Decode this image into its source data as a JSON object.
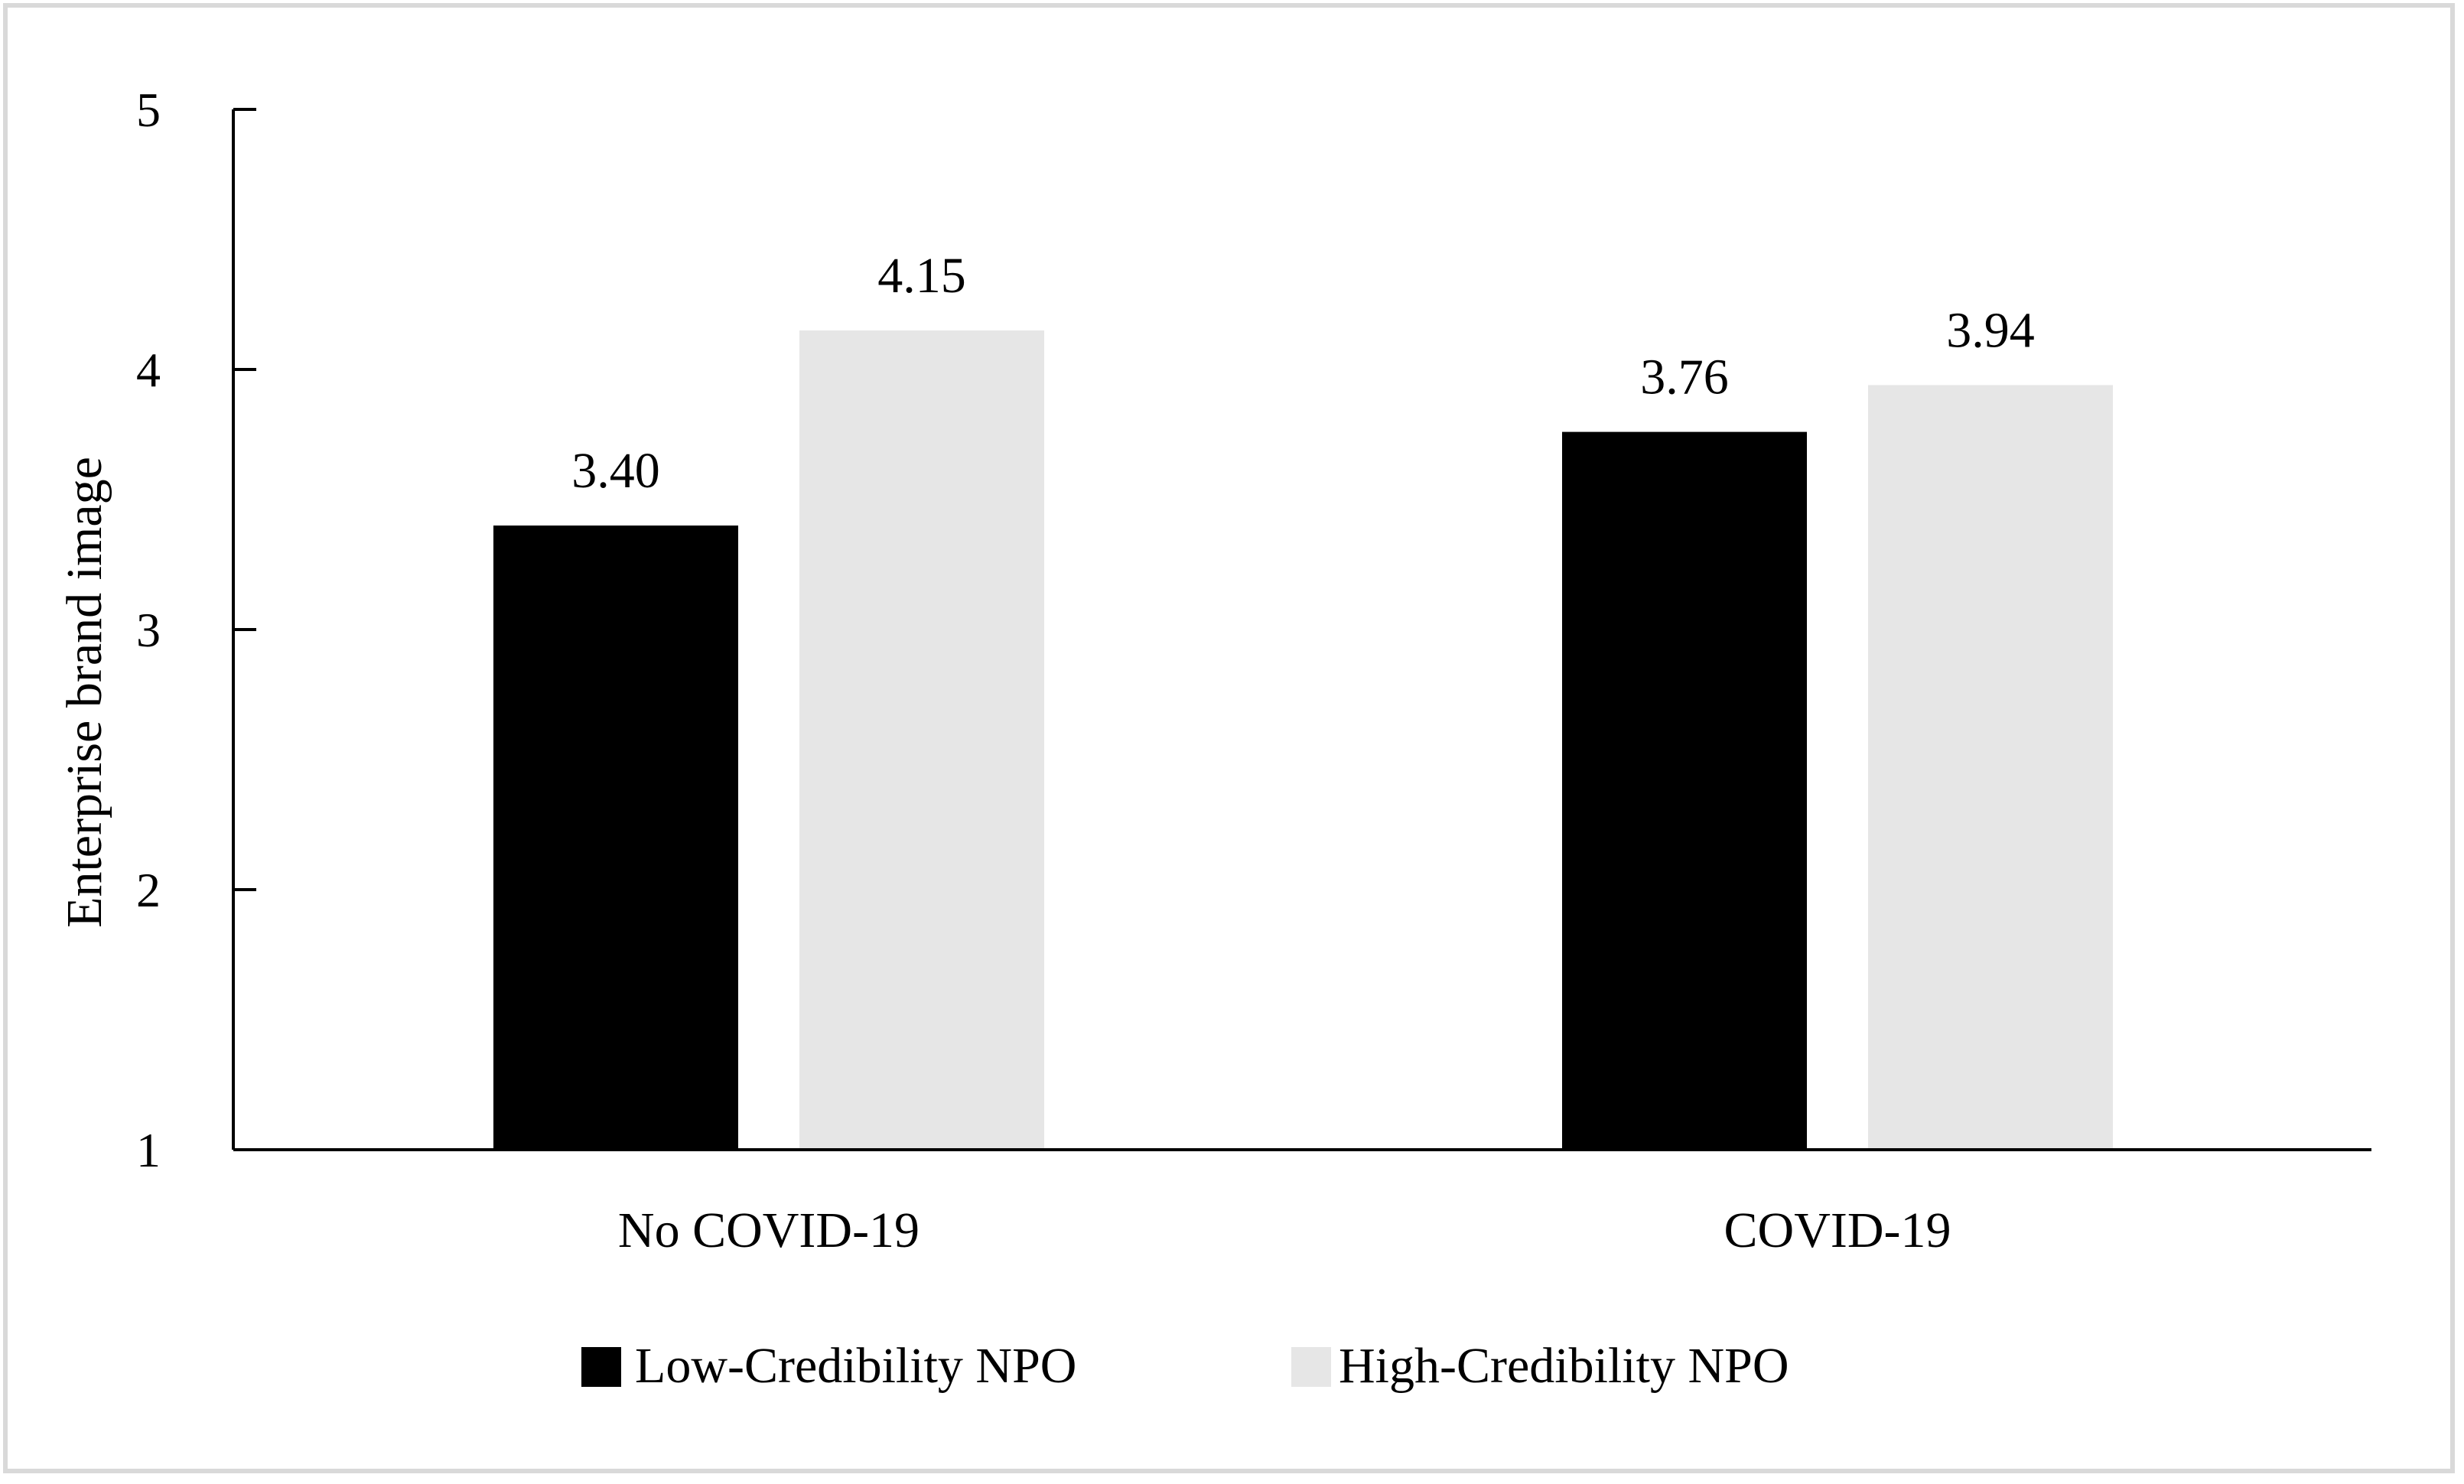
{
  "chart_data": {
    "type": "bar",
    "title": "",
    "xlabel": "",
    "ylabel": "Enterprise brand image",
    "ylim": [
      1,
      5
    ],
    "yticks": [
      "1",
      "2",
      "3",
      "4",
      "5"
    ],
    "categories": [
      "No COVID-19",
      "COVID-19"
    ],
    "series": [
      {
        "name": "Low-Credibility NPO",
        "values": [
          3.4,
          3.76
        ],
        "labels": [
          "3.40",
          "3.76"
        ],
        "color": "#000000"
      },
      {
        "name": "High-Credibility NPO",
        "values": [
          4.15,
          3.94
        ],
        "labels": [
          "4.15",
          "3.94"
        ],
        "color": "#e6e6e6"
      }
    ],
    "legend": "bottom-center"
  }
}
